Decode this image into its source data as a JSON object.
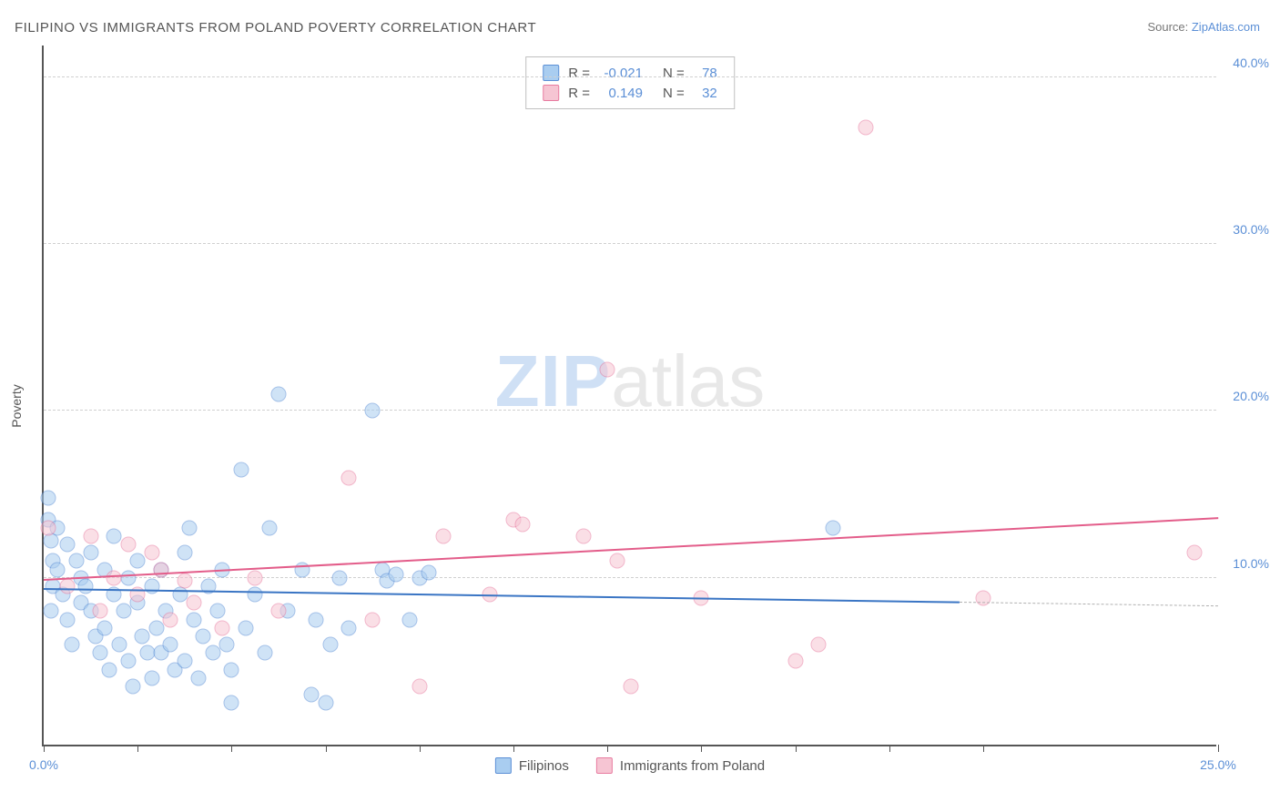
{
  "title": "FILIPINO VS IMMIGRANTS FROM POLAND POVERTY CORRELATION CHART",
  "source_prefix": "Source: ",
  "source_link": "ZipAtlas.com",
  "ylabel": "Poverty",
  "watermark_zip": "ZIP",
  "watermark_atlas": "atlas",
  "chart": {
    "type": "scatter",
    "background_color": "#ffffff",
    "grid_color": "#d0d0d0",
    "axis_color": "#555555",
    "text_color": "#555555",
    "value_color": "#5b8fd6",
    "xlim": [
      0,
      25
    ],
    "ylim": [
      0,
      42
    ],
    "xticks": [
      0,
      2,
      4,
      6,
      8,
      10,
      12,
      14,
      16,
      18,
      20,
      25
    ],
    "xtick_labels": {
      "0": "0.0%",
      "25": "25.0%"
    },
    "yticks": [
      10,
      20,
      30,
      40
    ],
    "ytick_labels": {
      "10": "10.0%",
      "20": "20.0%",
      "30": "30.0%",
      "40": "40.0%"
    },
    "marker_size": 17,
    "marker_opacity": 0.55,
    "series": [
      {
        "name": "Filipinos",
        "fill_color": "#a9cdf0",
        "stroke_color": "#5b8fd6",
        "trend_color": "#3a75c4",
        "R": "-0.021",
        "N": "78",
        "trend": {
          "x1": 0,
          "y1": 9.3,
          "x2": 19.5,
          "y2": 8.5,
          "dash_to_x": 25
        },
        "points": [
          [
            0.1,
            14.8
          ],
          [
            0.1,
            13.5
          ],
          [
            0.15,
            12.2
          ],
          [
            0.2,
            11.0
          ],
          [
            0.2,
            9.5
          ],
          [
            0.15,
            8.0
          ],
          [
            0.3,
            13.0
          ],
          [
            0.3,
            10.5
          ],
          [
            0.4,
            9.0
          ],
          [
            0.5,
            12.0
          ],
          [
            0.5,
            7.5
          ],
          [
            0.6,
            6.0
          ],
          [
            0.7,
            11.0
          ],
          [
            0.8,
            10.0
          ],
          [
            0.8,
            8.5
          ],
          [
            0.9,
            9.5
          ],
          [
            1.0,
            11.5
          ],
          [
            1.0,
            8.0
          ],
          [
            1.1,
            6.5
          ],
          [
            1.2,
            5.5
          ],
          [
            1.3,
            10.5
          ],
          [
            1.3,
            7.0
          ],
          [
            1.4,
            4.5
          ],
          [
            1.5,
            9.0
          ],
          [
            1.5,
            12.5
          ],
          [
            1.6,
            6.0
          ],
          [
            1.7,
            8.0
          ],
          [
            1.8,
            10.0
          ],
          [
            1.8,
            5.0
          ],
          [
            1.9,
            3.5
          ],
          [
            2.0,
            8.5
          ],
          [
            2.0,
            11.0
          ],
          [
            2.1,
            6.5
          ],
          [
            2.2,
            5.5
          ],
          [
            2.3,
            9.5
          ],
          [
            2.3,
            4.0
          ],
          [
            2.4,
            7.0
          ],
          [
            2.5,
            10.5
          ],
          [
            2.5,
            5.5
          ],
          [
            2.6,
            8.0
          ],
          [
            2.7,
            6.0
          ],
          [
            2.8,
            4.5
          ],
          [
            2.9,
            9.0
          ],
          [
            3.0,
            5.0
          ],
          [
            3.0,
            11.5
          ],
          [
            3.1,
            13.0
          ],
          [
            3.2,
            7.5
          ],
          [
            3.3,
            4.0
          ],
          [
            3.4,
            6.5
          ],
          [
            3.5,
            9.5
          ],
          [
            3.6,
            5.5
          ],
          [
            3.7,
            8.0
          ],
          [
            3.8,
            10.5
          ],
          [
            3.9,
            6.0
          ],
          [
            4.0,
            4.5
          ],
          [
            4.0,
            2.5
          ],
          [
            4.2,
            16.5
          ],
          [
            4.3,
            7.0
          ],
          [
            4.5,
            9.0
          ],
          [
            4.7,
            5.5
          ],
          [
            4.8,
            13.0
          ],
          [
            5.0,
            21.0
          ],
          [
            5.2,
            8.0
          ],
          [
            5.5,
            10.5
          ],
          [
            5.7,
            3.0
          ],
          [
            5.8,
            7.5
          ],
          [
            6.0,
            2.5
          ],
          [
            6.1,
            6.0
          ],
          [
            6.3,
            10.0
          ],
          [
            6.5,
            7.0
          ],
          [
            7.0,
            20.0
          ],
          [
            7.2,
            10.5
          ],
          [
            7.3,
            9.8
          ],
          [
            7.5,
            10.2
          ],
          [
            7.8,
            7.5
          ],
          [
            8.0,
            10.0
          ],
          [
            8.2,
            10.3
          ],
          [
            16.8,
            13.0
          ]
        ]
      },
      {
        "name": "Immigrants from Poland",
        "fill_color": "#f6c5d3",
        "stroke_color": "#e87ba0",
        "trend_color": "#e35d8a",
        "R": "0.149",
        "N": "32",
        "trend": {
          "x1": 0,
          "y1": 9.8,
          "x2": 25,
          "y2": 13.5
        },
        "points": [
          [
            0.1,
            13.0
          ],
          [
            0.5,
            9.5
          ],
          [
            1.0,
            12.5
          ],
          [
            1.2,
            8.0
          ],
          [
            1.5,
            10.0
          ],
          [
            1.8,
            12.0
          ],
          [
            2.0,
            9.0
          ],
          [
            2.3,
            11.5
          ],
          [
            2.5,
            10.5
          ],
          [
            2.7,
            7.5
          ],
          [
            3.0,
            9.8
          ],
          [
            3.2,
            8.5
          ],
          [
            3.8,
            7.0
          ],
          [
            4.5,
            10.0
          ],
          [
            5.0,
            8.0
          ],
          [
            6.5,
            16.0
          ],
          [
            7.0,
            7.5
          ],
          [
            8.0,
            3.5
          ],
          [
            8.5,
            12.5
          ],
          [
            9.5,
            9.0
          ],
          [
            10.0,
            13.5
          ],
          [
            10.2,
            13.2
          ],
          [
            11.5,
            12.5
          ],
          [
            12.0,
            22.5
          ],
          [
            12.2,
            11.0
          ],
          [
            12.5,
            3.5
          ],
          [
            14.0,
            8.8
          ],
          [
            16.0,
            5.0
          ],
          [
            16.5,
            6.0
          ],
          [
            17.5,
            37.0
          ],
          [
            20.0,
            8.8
          ],
          [
            24.5,
            11.5
          ]
        ]
      }
    ]
  },
  "legend_bottom": [
    {
      "label": "Filipinos",
      "fill": "#a9cdf0",
      "stroke": "#5b8fd6"
    },
    {
      "label": "Immigrants from Poland",
      "fill": "#f6c5d3",
      "stroke": "#e87ba0"
    }
  ],
  "legend_top_cols": {
    "r": "R =",
    "n": "N ="
  }
}
